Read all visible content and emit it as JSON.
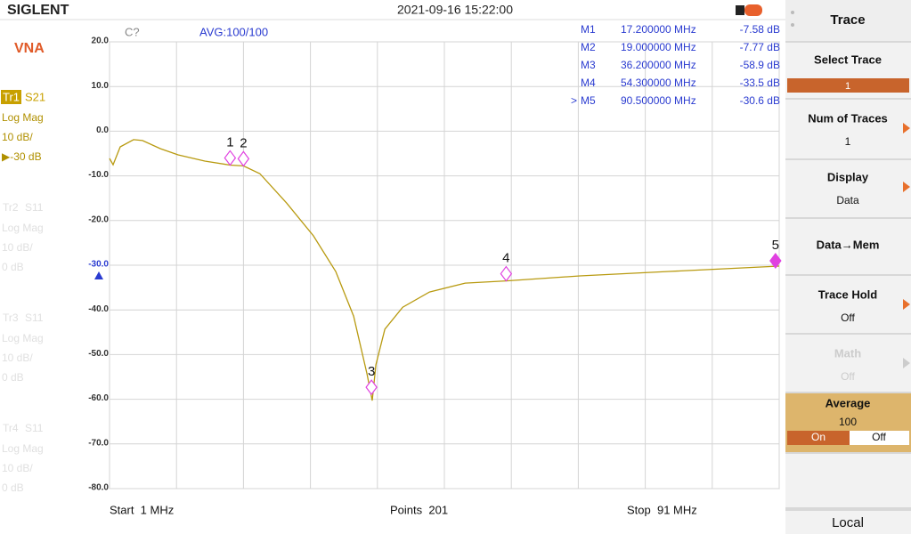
{
  "header": {
    "brand": "SIGLENT",
    "datetime": "2021-09-16 15:22:00"
  },
  "left_panel": {
    "mode": "VNA",
    "traces": [
      {
        "id": "Tr1",
        "param": "S21",
        "format": "Log Mag",
        "scale": "10 dB/",
        "ref": "▶-30 dB"
      },
      {
        "id": "Tr2",
        "param": "S11",
        "format": "Log Mag",
        "scale": "10 dB/",
        "ref": "0 dB"
      },
      {
        "id": "Tr3",
        "param": "S11",
        "format": "Log Mag",
        "scale": "10 dB/",
        "ref": "0 dB"
      },
      {
        "id": "Tr4",
        "param": "S11",
        "format": "Log Mag",
        "scale": "10 dB/",
        "ref": "0 dB"
      }
    ]
  },
  "chart_data": {
    "type": "line",
    "status": "C?",
    "averaging": "AVG:100/100",
    "x": [
      1,
      1.48,
      2.44,
      4.23,
      5.43,
      7.82,
      10.21,
      13.8,
      17.2,
      19.0,
      21.2,
      24.8,
      28.4,
      31.4,
      33.8,
      35.6,
      36.3,
      36.8,
      38.0,
      40.4,
      44.0,
      48.8,
      54.3,
      64.2,
      76.2,
      91
    ],
    "series": [
      {
        "color": "#b89a10",
        "values": [
          -6.1,
          -7.5,
          -3.5,
          -1.9,
          -2.1,
          -3.9,
          -5.3,
          -6.7,
          -7.58,
          -7.77,
          -9.5,
          -16.1,
          -23.4,
          -31.4,
          -41.4,
          -54.3,
          -60.3,
          -52.3,
          -44.3,
          -39.4,
          -36.0,
          -34.0,
          -33.5,
          -32.4,
          -31.4,
          -30.2
        ]
      }
    ],
    "markers": {
      "color": "#e040e0",
      "active": 4,
      "ids": [
        "1",
        "2",
        "3",
        "4",
        "5"
      ],
      "names": [
        "M1",
        "M2",
        "M3",
        "M4",
        "M5"
      ],
      "x": [
        17.2,
        19.0,
        36.2,
        54.3,
        90.5
      ],
      "x_labels": [
        "17.200000 MHz",
        "19.000000 MHz",
        "36.200000 MHz",
        "54.300000 MHz",
        "90.500000 MHz"
      ],
      "values": [
        -7.58,
        -7.77,
        -58.9,
        -33.5,
        -30.6
      ],
      "value_labels": [
        "-7.58 dB",
        "-7.77 dB",
        "-58.9 dB",
        "-33.5 dB",
        "-30.6 dB"
      ],
      "active_prefix": ">"
    },
    "xlim": [
      1,
      91
    ],
    "xticks": [
      1,
      10,
      19,
      28,
      37,
      46,
      55,
      64,
      73,
      82,
      91
    ],
    "ylim": [
      -80,
      20
    ],
    "yticks": [
      {
        "value": 20,
        "label": "20.0"
      },
      {
        "value": 10,
        "label": "10.0"
      },
      {
        "value": 0,
        "label": "0.0"
      },
      {
        "value": -10,
        "label": "-10.0"
      },
      {
        "value": -20,
        "label": "-20.0"
      },
      {
        "value": -30,
        "label": "-30.0"
      },
      {
        "value": -40,
        "label": "-40.0"
      },
      {
        "value": -50,
        "label": "-50.0"
      },
      {
        "value": -60,
        "label": "-60.0"
      },
      {
        "value": -70,
        "label": "-70.0"
      },
      {
        "value": -80,
        "label": "-80.0"
      }
    ],
    "reference_level": -30,
    "grid": true
  },
  "footer": {
    "start": "Start  1 MHz",
    "points": "Points  201",
    "stop": "Stop  91 MHz"
  },
  "menu": {
    "title": "Trace",
    "select_trace": {
      "label": "Select Trace",
      "value": "1"
    },
    "num_traces": {
      "label": "Num of Traces",
      "value": "1"
    },
    "display": {
      "label": "Display",
      "value": "Data"
    },
    "data_mem": {
      "label": "Data→Mem"
    },
    "trace_hold": {
      "label": "Trace Hold",
      "value": "Off"
    },
    "math": {
      "label": "Math",
      "value": "Off"
    },
    "average": {
      "label": "Average",
      "value": "100",
      "on": "On",
      "off": "Off"
    },
    "local": "Local"
  }
}
